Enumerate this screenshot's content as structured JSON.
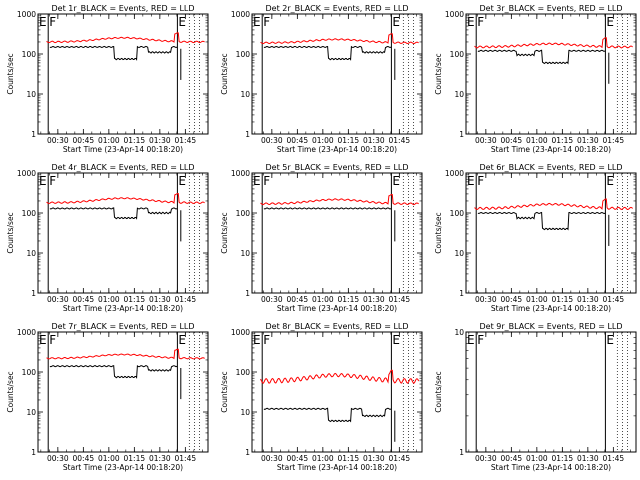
{
  "chart_data": {
    "type": "line",
    "panel_common": {
      "ylabel": "Counts/sec",
      "xlabel": "Start Time (23-Apr-14 00:18:20)",
      "x_tick_labels": [
        "00:30",
        "00:45",
        "01:00",
        "01:15",
        "01:30",
        "01:45"
      ],
      "x_ticks_minutes_since_start": [
        11.67,
        26.67,
        41.67,
        56.67,
        71.67,
        86.67
      ],
      "xlim_minutes_since_start": [
        0,
        100
      ],
      "yscale": "log",
      "ylim": [
        1,
        1000
      ],
      "y_tick_labels": [
        "1",
        "10",
        "100",
        "1000"
      ],
      "series_colors": {
        "events": "#000000",
        "lld": "#ff0000"
      },
      "markers": [
        {
          "label": "E",
          "x": 0
        },
        {
          "label": "F",
          "x": 6
        },
        {
          "label": "E",
          "x": 82
        }
      ]
    },
    "panels": [
      {
        "title": "Det 1r_BLACK = Events, RED = LLD",
        "black_base": 150,
        "black_dips": [
          [
            45,
            58,
            75
          ],
          [
            65,
            78,
            110
          ]
        ],
        "red_base": 200,
        "red_amp": 90,
        "has_data": true
      },
      {
        "title": "Det 2r_BLACK = Events, RED = LLD",
        "black_base": 150,
        "black_dips": [
          [
            45,
            58,
            75
          ],
          [
            65,
            78,
            110
          ]
        ],
        "red_base": 190,
        "red_amp": 70,
        "has_data": true
      },
      {
        "title": "Det 3r_BLACK = Events, RED = LLD",
        "black_base": 120,
        "black_dips": [
          [
            30,
            40,
            95
          ],
          [
            45,
            60,
            60
          ]
        ],
        "red_base": 150,
        "red_amp": 50,
        "has_data": true
      },
      {
        "title": "Det 4r_BLACK = Events, RED = LLD",
        "black_base": 130,
        "black_dips": [
          [
            45,
            58,
            75
          ],
          [
            65,
            78,
            100
          ]
        ],
        "red_base": 180,
        "red_amp": 90,
        "has_data": true
      },
      {
        "title": "Det 5r_BLACK = Events, RED = LLD",
        "black_base": 130,
        "black_dips": [],
        "red_base": 170,
        "red_amp": 80,
        "has_data": true
      },
      {
        "title": "Det 6r_BLACK = Events, RED = LLD",
        "black_base": 100,
        "black_dips": [
          [
            30,
            40,
            75
          ],
          [
            45,
            60,
            40
          ]
        ],
        "red_base": 130,
        "red_amp": 60,
        "has_data": true
      },
      {
        "title": "Det 7r_BLACK = Events, RED = LLD",
        "black_base": 140,
        "black_dips": [
          [
            45,
            58,
            75
          ],
          [
            65,
            78,
            110
          ]
        ],
        "red_base": 220,
        "red_amp": 90,
        "has_data": true
      },
      {
        "title": "Det 8r_BLACK = Events, RED = LLD",
        "black_base": 12,
        "black_dips": [
          [
            45,
            58,
            6
          ],
          [
            65,
            78,
            8
          ]
        ],
        "red_base": 60,
        "red_amp": 40,
        "has_data": true
      },
      {
        "title": "Det 9r_BLACK = Events, RED = LLD",
        "black_base": 0,
        "black_dips": [],
        "red_base": 0,
        "red_amp": 0,
        "has_data": false,
        "ylim": [
          1,
          10
        ],
        "y_tick_labels": [
          "1",
          "10"
        ]
      }
    ]
  }
}
